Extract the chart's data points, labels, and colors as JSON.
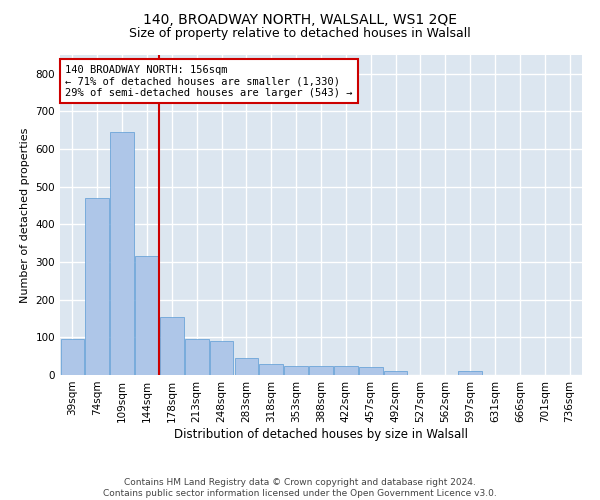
{
  "title": "140, BROADWAY NORTH, WALSALL, WS1 2QE",
  "subtitle": "Size of property relative to detached houses in Walsall",
  "xlabel": "Distribution of detached houses by size in Walsall",
  "ylabel": "Number of detached properties",
  "bar_color": "#aec6e8",
  "bar_edge_color": "#5b9bd5",
  "background_color": "#dce6f0",
  "grid_color": "#ffffff",
  "annotation_box_color": "#cc0000",
  "annotation_text": "140 BROADWAY NORTH: 156sqm\n← 71% of detached houses are smaller (1,330)\n29% of semi-detached houses are larger (543) →",
  "property_line_color": "#cc0000",
  "property_line_bin": 3,
  "categories": [
    "39sqm",
    "74sqm",
    "109sqm",
    "144sqm",
    "178sqm",
    "213sqm",
    "248sqm",
    "283sqm",
    "318sqm",
    "353sqm",
    "388sqm",
    "422sqm",
    "457sqm",
    "492sqm",
    "527sqm",
    "562sqm",
    "597sqm",
    "631sqm",
    "666sqm",
    "701sqm",
    "736sqm"
  ],
  "values": [
    95,
    470,
    645,
    315,
    155,
    95,
    90,
    45,
    30,
    25,
    25,
    25,
    20,
    10,
    0,
    0,
    10,
    0,
    0,
    0,
    0
  ],
  "ylim": [
    0,
    850
  ],
  "yticks": [
    0,
    100,
    200,
    300,
    400,
    500,
    600,
    700,
    800
  ],
  "footer": "Contains HM Land Registry data © Crown copyright and database right 2024.\nContains public sector information licensed under the Open Government Licence v3.0.",
  "title_fontsize": 10,
  "subtitle_fontsize": 9,
  "xlabel_fontsize": 8.5,
  "ylabel_fontsize": 8,
  "tick_fontsize": 7.5,
  "annotation_fontsize": 7.5,
  "footer_fontsize": 6.5
}
